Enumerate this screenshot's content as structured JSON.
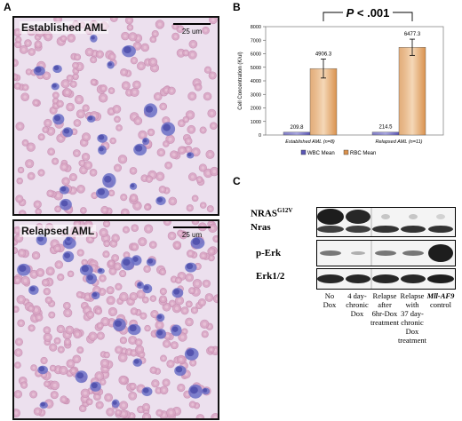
{
  "panels": {
    "a": {
      "letter": "A",
      "top_title": "Established AML",
      "bottom_title": "Relapsed AML",
      "scale_label": "25 um"
    },
    "b": {
      "letter": "B"
    },
    "c": {
      "letter": "C"
    }
  },
  "chart_data": {
    "type": "bar",
    "title": "",
    "significance": "P < .001",
    "ylabel": "Cell Concentration (K/ul)",
    "xlabel": "",
    "ylim": [
      0,
      8000
    ],
    "yticks": [
      0,
      1000,
      2000,
      3000,
      4000,
      5000,
      6000,
      7000,
      8000
    ],
    "categories": [
      "Established AML (n=8)",
      "Relapsed AML (n=11)"
    ],
    "series": [
      {
        "name": "WBC Mean",
        "color": "#5b57b5",
        "values": [
          209.8,
          214.5
        ],
        "value_labels": [
          "209.8",
          "214.5"
        ]
      },
      {
        "name": "RBC Mean",
        "color": "#d9924e",
        "values": [
          4906.3,
          6477.3
        ],
        "value_labels": [
          "4906.3",
          "6477.3"
        ],
        "errors": [
          700,
          600
        ]
      }
    ],
    "grid": false,
    "legend": "bottom"
  },
  "blot": {
    "rows": [
      {
        "label_main": "NRAS",
        "label_sup": "G12V",
        "label_second": "Nras"
      },
      {
        "label_main": "p-Erk"
      },
      {
        "label_main": "Erk1/2"
      }
    ],
    "lanes": [
      {
        "lines": [
          "No",
          "Dox"
        ]
      },
      {
        "lines": [
          "4 day-",
          "chronic",
          "Dox"
        ]
      },
      {
        "lines": [
          "Relapse",
          "after",
          "6hr-Dox",
          "treatment"
        ]
      },
      {
        "lines": [
          "Relapse",
          "with",
          "37 day-",
          "chronic",
          "Dox",
          "treatment"
        ]
      },
      {
        "lines": [
          "Mll-AF9",
          "control"
        ],
        "italic_first": true
      }
    ]
  }
}
